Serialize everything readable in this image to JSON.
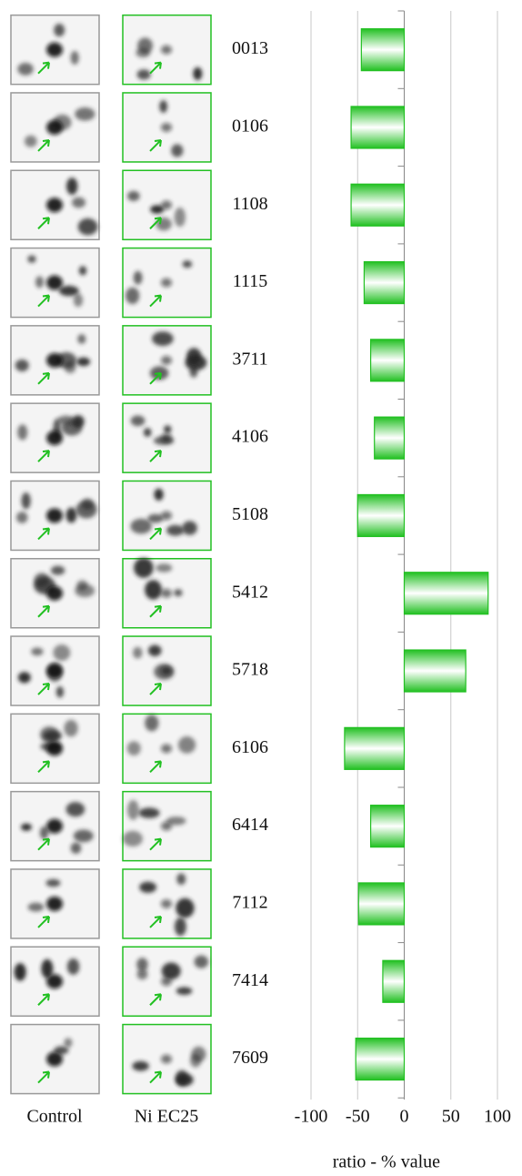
{
  "chart_data": {
    "type": "bar",
    "orientation": "horizontal",
    "image_columns": [
      "Control",
      "Ni EC25"
    ],
    "categories": [
      "0013",
      "0106",
      "1108",
      "1115",
      "3711",
      "4106",
      "5108",
      "5412",
      "5718",
      "6106",
      "6414",
      "7112",
      "7414",
      "7609"
    ],
    "values": [
      -46,
      -57,
      -57,
      -43,
      -36,
      -32,
      -50,
      90,
      66,
      -64,
      -36,
      -49,
      -23,
      -52
    ],
    "color": "#22c022",
    "xlim": [
      -100,
      100
    ],
    "xticks": [
      -100,
      -50,
      0,
      50,
      100
    ],
    "xlabel": "ratio - % value",
    "grid": true
  }
}
